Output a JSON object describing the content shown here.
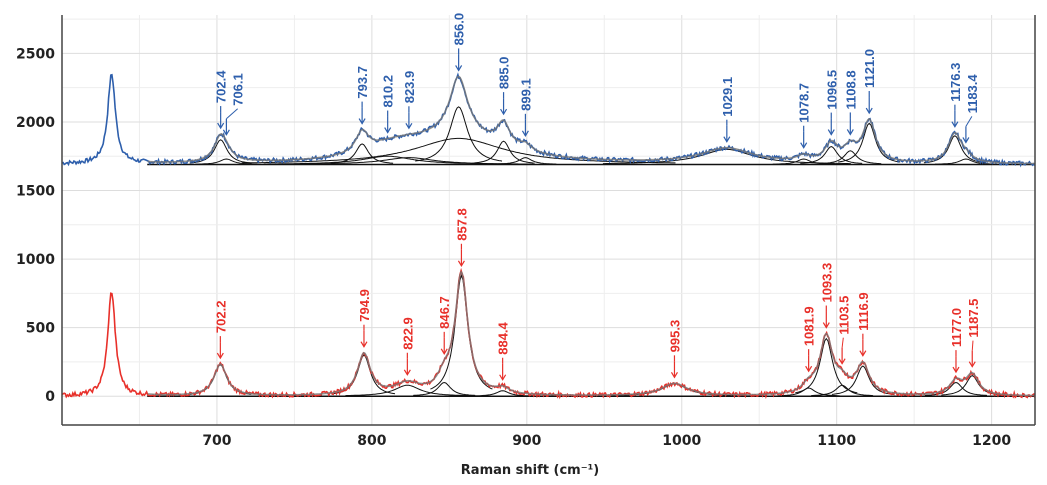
{
  "chart_data": {
    "type": "line",
    "title": "",
    "xlabel": "Raman shift (cm⁻¹)",
    "ylabel": "",
    "xlim": [
      600,
      1228
    ],
    "ylim": [
      -210,
      2780
    ],
    "xticks": [
      700,
      800,
      900,
      1000,
      1100,
      1200
    ],
    "yticks": [
      0,
      500,
      1000,
      1500,
      2000,
      2500
    ],
    "grid": true,
    "series": [
      {
        "color": "#2e5fac",
        "baseline": 1690,
        "peaks": [
          {
            "x": 632,
            "height": 650,
            "label": ""
          },
          {
            "x": 702.4,
            "height": 180,
            "label": "702.4"
          },
          {
            "x": 706.1,
            "height": 40,
            "label": "706.1"
          },
          {
            "x": 793.7,
            "height": 150,
            "label": "793.7"
          },
          {
            "x": 810.2,
            "height": 60,
            "label": "810.2"
          },
          {
            "x": 823.9,
            "height": 50,
            "label": "823.9"
          },
          {
            "x": 856.0,
            "height": 610,
            "label": "856.0"
          },
          {
            "x": 885.0,
            "height": 170,
            "label": "885.0"
          },
          {
            "x": 899.1,
            "height": 50,
            "label": "899.1"
          },
          {
            "x": 1029.1,
            "height": 110,
            "label": "1029.1"
          },
          {
            "x": 1078.7,
            "height": 40,
            "label": "1078.7"
          },
          {
            "x": 1096.5,
            "height": 130,
            "label": "1096.5"
          },
          {
            "x": 1108.8,
            "height": 100,
            "label": "1108.8"
          },
          {
            "x": 1121.0,
            "height": 300,
            "label": "1121.0"
          },
          {
            "x": 1176.3,
            "height": 210,
            "label": "1176.3"
          },
          {
            "x": 1183.4,
            "height": 40,
            "label": "1183.4"
          }
        ]
      },
      {
        "color": "#e8302a",
        "baseline": 0,
        "peaks": [
          {
            "x": 632,
            "height": 760,
            "label": ""
          },
          {
            "x": 702.2,
            "height": 230,
            "label": "702.2"
          },
          {
            "x": 794.9,
            "height": 300,
            "label": "794.9"
          },
          {
            "x": 822.9,
            "height": 80,
            "label": "822.9"
          },
          {
            "x": 846.7,
            "height": 100,
            "label": "846.7"
          },
          {
            "x": 857.8,
            "height": 880,
            "label": "857.8"
          },
          {
            "x": 884.4,
            "height": 40,
            "label": "884.4"
          },
          {
            "x": 995.3,
            "height": 90,
            "label": "995.3"
          },
          {
            "x": 1081.9,
            "height": 60,
            "label": "1081.9"
          },
          {
            "x": 1093.3,
            "height": 420,
            "label": "1093.3"
          },
          {
            "x": 1103.5,
            "height": 80,
            "label": "1103.5"
          },
          {
            "x": 1116.9,
            "height": 220,
            "label": "1116.9"
          },
          {
            "x": 1177.0,
            "height": 100,
            "label": "1177.0"
          },
          {
            "x": 1187.5,
            "height": 150,
            "label": "1187.5"
          }
        ]
      }
    ]
  }
}
